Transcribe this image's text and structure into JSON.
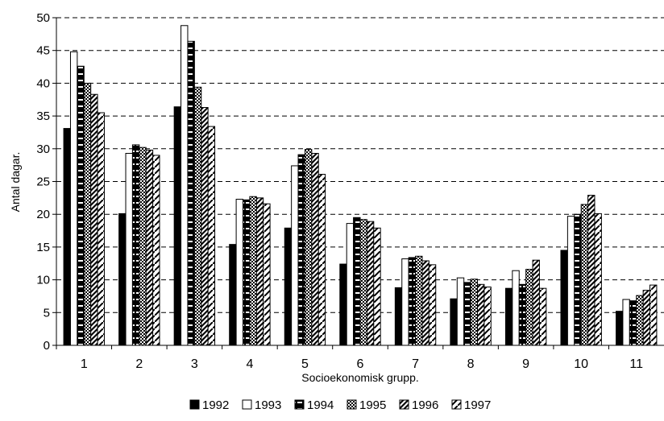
{
  "chart_data": {
    "type": "bar",
    "xlabel": "Socioekonomisk grupp.",
    "ylabel": "Antal dagar.",
    "ylim": [
      0,
      50
    ],
    "yticks": [
      0,
      5,
      10,
      15,
      20,
      25,
      30,
      35,
      40,
      45,
      50
    ],
    "grid": "horizontal dashed",
    "legend_position": "bottom",
    "categories": [
      "1",
      "2",
      "3",
      "4",
      "5",
      "6",
      "7",
      "8",
      "9",
      "10",
      "11"
    ],
    "series": [
      {
        "name": "1992",
        "pattern": "solid",
        "values": [
          33.1,
          20.1,
          36.4,
          15.4,
          17.9,
          12.4,
          8.8,
          7.1,
          8.7,
          14.5,
          5.2
        ]
      },
      {
        "name": "1993",
        "pattern": "white",
        "values": [
          44.8,
          29.3,
          48.8,
          22.3,
          27.4,
          18.6,
          13.2,
          10.3,
          11.4,
          19.7,
          7.0
        ]
      },
      {
        "name": "1994",
        "pattern": "stripes",
        "values": [
          42.6,
          30.6,
          46.4,
          22.2,
          29.1,
          19.5,
          13.4,
          9.6,
          9.3,
          20.0,
          6.8
        ]
      },
      {
        "name": "1995",
        "pattern": "checker",
        "values": [
          40.0,
          30.2,
          39.4,
          22.7,
          29.9,
          19.2,
          13.6,
          10.1,
          11.6,
          21.5,
          7.6
        ]
      },
      {
        "name": "1996",
        "pattern": "diagonal",
        "values": [
          38.3,
          29.8,
          36.3,
          22.5,
          29.3,
          18.9,
          12.9,
          9.3,
          13.0,
          22.9,
          8.4
        ]
      },
      {
        "name": "1997",
        "pattern": "light-diagonal",
        "values": [
          35.5,
          29.0,
          33.4,
          21.6,
          26.1,
          17.9,
          12.3,
          8.9,
          8.7,
          20.1,
          9.2
        ]
      }
    ]
  }
}
